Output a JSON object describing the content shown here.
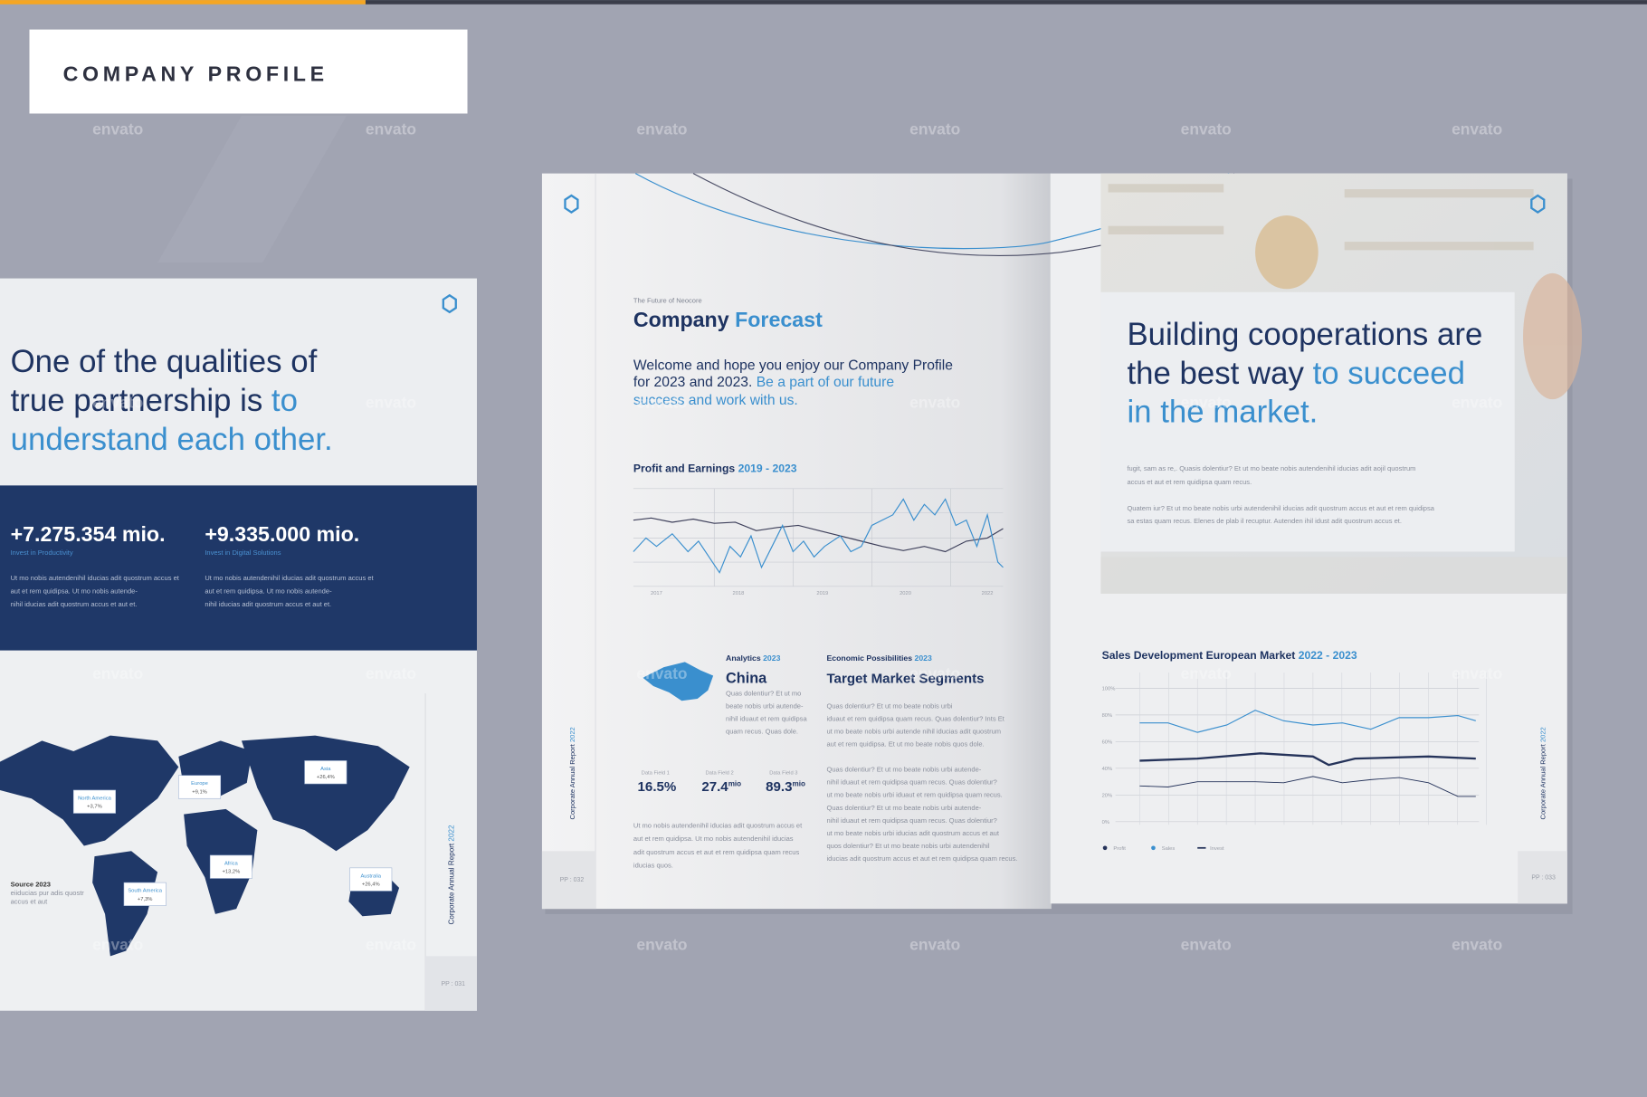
{
  "header": {
    "title": "COMPANY PROFILE"
  },
  "watermark": "envato",
  "left_page": {
    "heading": {
      "line1": "One of the qualities of",
      "line2": "true partnership is ",
      "line2_accent": "to",
      "line3_accent": "understand each other."
    },
    "stats": [
      {
        "value": "+7.275.354 mio.",
        "caption": "Invest in Productivity",
        "text": [
          "Ut mo nobis autendenihil iducias adit quostrum accus et",
          "aut et rem quidipsa. Ut mo nobis autende-",
          "nihil iducias adit quostrum accus et aut et."
        ]
      },
      {
        "value": "+9.335.000 mio.",
        "caption": "Invest in Digital Solutions",
        "text": [
          "Ut mo nobis autendenihil iducias adit quostrum accus et",
          "aut et rem quidipsa. Ut mo nobis autende-",
          "nihil iducias adit quostrum accus et aut et."
        ]
      }
    ],
    "map_labels": [
      {
        "region": "North America",
        "value": "+3,7%"
      },
      {
        "region": "Europe",
        "value": "+9,1%"
      },
      {
        "region": "Asia",
        "value": "+26,4%"
      },
      {
        "region": "Africa",
        "value": "+13,2%"
      },
      {
        "region": "South America",
        "value": "+7,3%"
      },
      {
        "region": "Australia",
        "value": "+26,4%"
      }
    ],
    "source": [
      "Source 2023",
      "eiiducias pur adis quostr",
      "accus et aut"
    ],
    "side_label": "Corporate Annual Report ",
    "side_year": "2022",
    "page_number": "PP : 031"
  },
  "forecast_page": {
    "kicker": "The Future of Neocore",
    "title": "Company ",
    "title_accent": "Forecast",
    "intro": {
      "line1": "Welcome and hope you enjoy our Company Profile",
      "line2": "for 2023 and 2023. ",
      "line2_accent": "Be a part of our future",
      "line3_accent": "success and work with us."
    },
    "chart_title": "Profit and Earnings ",
    "chart_years": "2019 - 2023",
    "chart_axis": [
      "2017",
      "2018",
      "2019",
      "2020",
      "2022"
    ],
    "analytics": {
      "kicker": "Analytics ",
      "year": "2023",
      "title": "China",
      "text": [
        "Quas dolentiur? Et ut mo",
        "beate nobis urbi autende-",
        "nihil iduaut et rem quidipsa",
        "quam recus. Quas dole."
      ]
    },
    "segments": {
      "kicker": "Economic Possibilities ",
      "year": "2023",
      "title": "Target Market Segments",
      "text": [
        "Quas dolentiur? Et ut mo beate nobis urbi",
        "iduaut et rem quidipsa quam recus. Quas dolentiur? Ints Et",
        "ut mo beate nobis urbi autende nihil iducias adit quostrum",
        "aut et rem quidipsa. Et ut mo beate nobis quos dole.",
        "",
        "Quas dolentiur? Et ut mo beate nobis urbi autende-",
        "nihil iduaut et rem quidipsa quam recus. Quas dolentiur?",
        "ut mo beate nobis urbi iduaut et rem quidipsa quam recus.",
        "Quas dolentiur? Et ut mo beate nobis urbi autende-",
        "nihil iduaut et rem quidipsa quam recus. Quas dolentiur?",
        "ut mo beate nobis urbi iducias adit quostrum accus et aut",
        "quos dolentiur? Et ut mo beate nobis urbi autendenihil",
        "iducias adit quostrum accus et aut et rem quidipsa quam recus."
      ]
    },
    "data_fields": [
      {
        "label": "Data Field 1",
        "value": "16.5%"
      },
      {
        "label": "Data Field 2",
        "value": "27.4",
        "unit": "mio"
      },
      {
        "label": "Data Field 3",
        "value": "89.3",
        "unit": "mio"
      }
    ],
    "bottom_text": [
      "Ut mo nobis autendenihil iducias adit quostrum accus et",
      "aut et rem quidipsa. Ut mo nobis autendenihil iducias",
      "adit quostrum accus et aut et rem quidipsa quam recus",
      "iducias quos."
    ],
    "side_label": "Corporate Annual Report ",
    "side_year": "2022",
    "page_number": "PP : 032"
  },
  "cooperation_page": {
    "heading": {
      "line1": "Building cooperations are",
      "line2": "the best way ",
      "line2_accent": "to succeed",
      "line3_accent": "in the market."
    },
    "text": [
      "fugit, sam as re,. Quasis dolentiur? Et ut mo beate nobis autendenihil iducias adit aojil quostrum",
      "accus et aut et rem quidipsa quam recus.",
      "Quatem iur? Et ut mo beate nobis urbi autendenihil iducias adit quostrum accus et aut et rem quidipsa",
      "sa estas quam recus. Elenes de plab il recuptur. Autenden ihil idust adit quostrum accus et."
    ],
    "chart_title": "Sales Development European Market ",
    "chart_years": "2022 - 2023",
    "chart_axis": [
      "100%",
      "80%",
      "60%",
      "40%",
      "20%",
      "0%"
    ],
    "legend": [
      "Profit",
      "Sales",
      "Invest"
    ],
    "side_label": "Corporate Annual Report ",
    "side_year": "2022",
    "page_number": "PP : 033"
  }
}
